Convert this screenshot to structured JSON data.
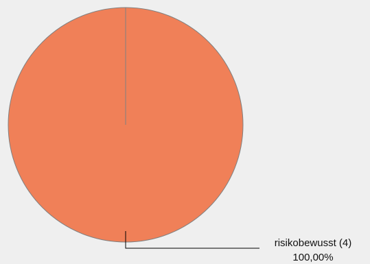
{
  "chart_data": {
    "type": "pie",
    "slices": [
      {
        "label": "risikobewusst (4)",
        "count": 4,
        "percent": 100.0,
        "percent_label": "100,00%",
        "color": "#f08058"
      }
    ],
    "legend": "none",
    "stroke_color": "#808080",
    "leader_color": "#000000"
  }
}
